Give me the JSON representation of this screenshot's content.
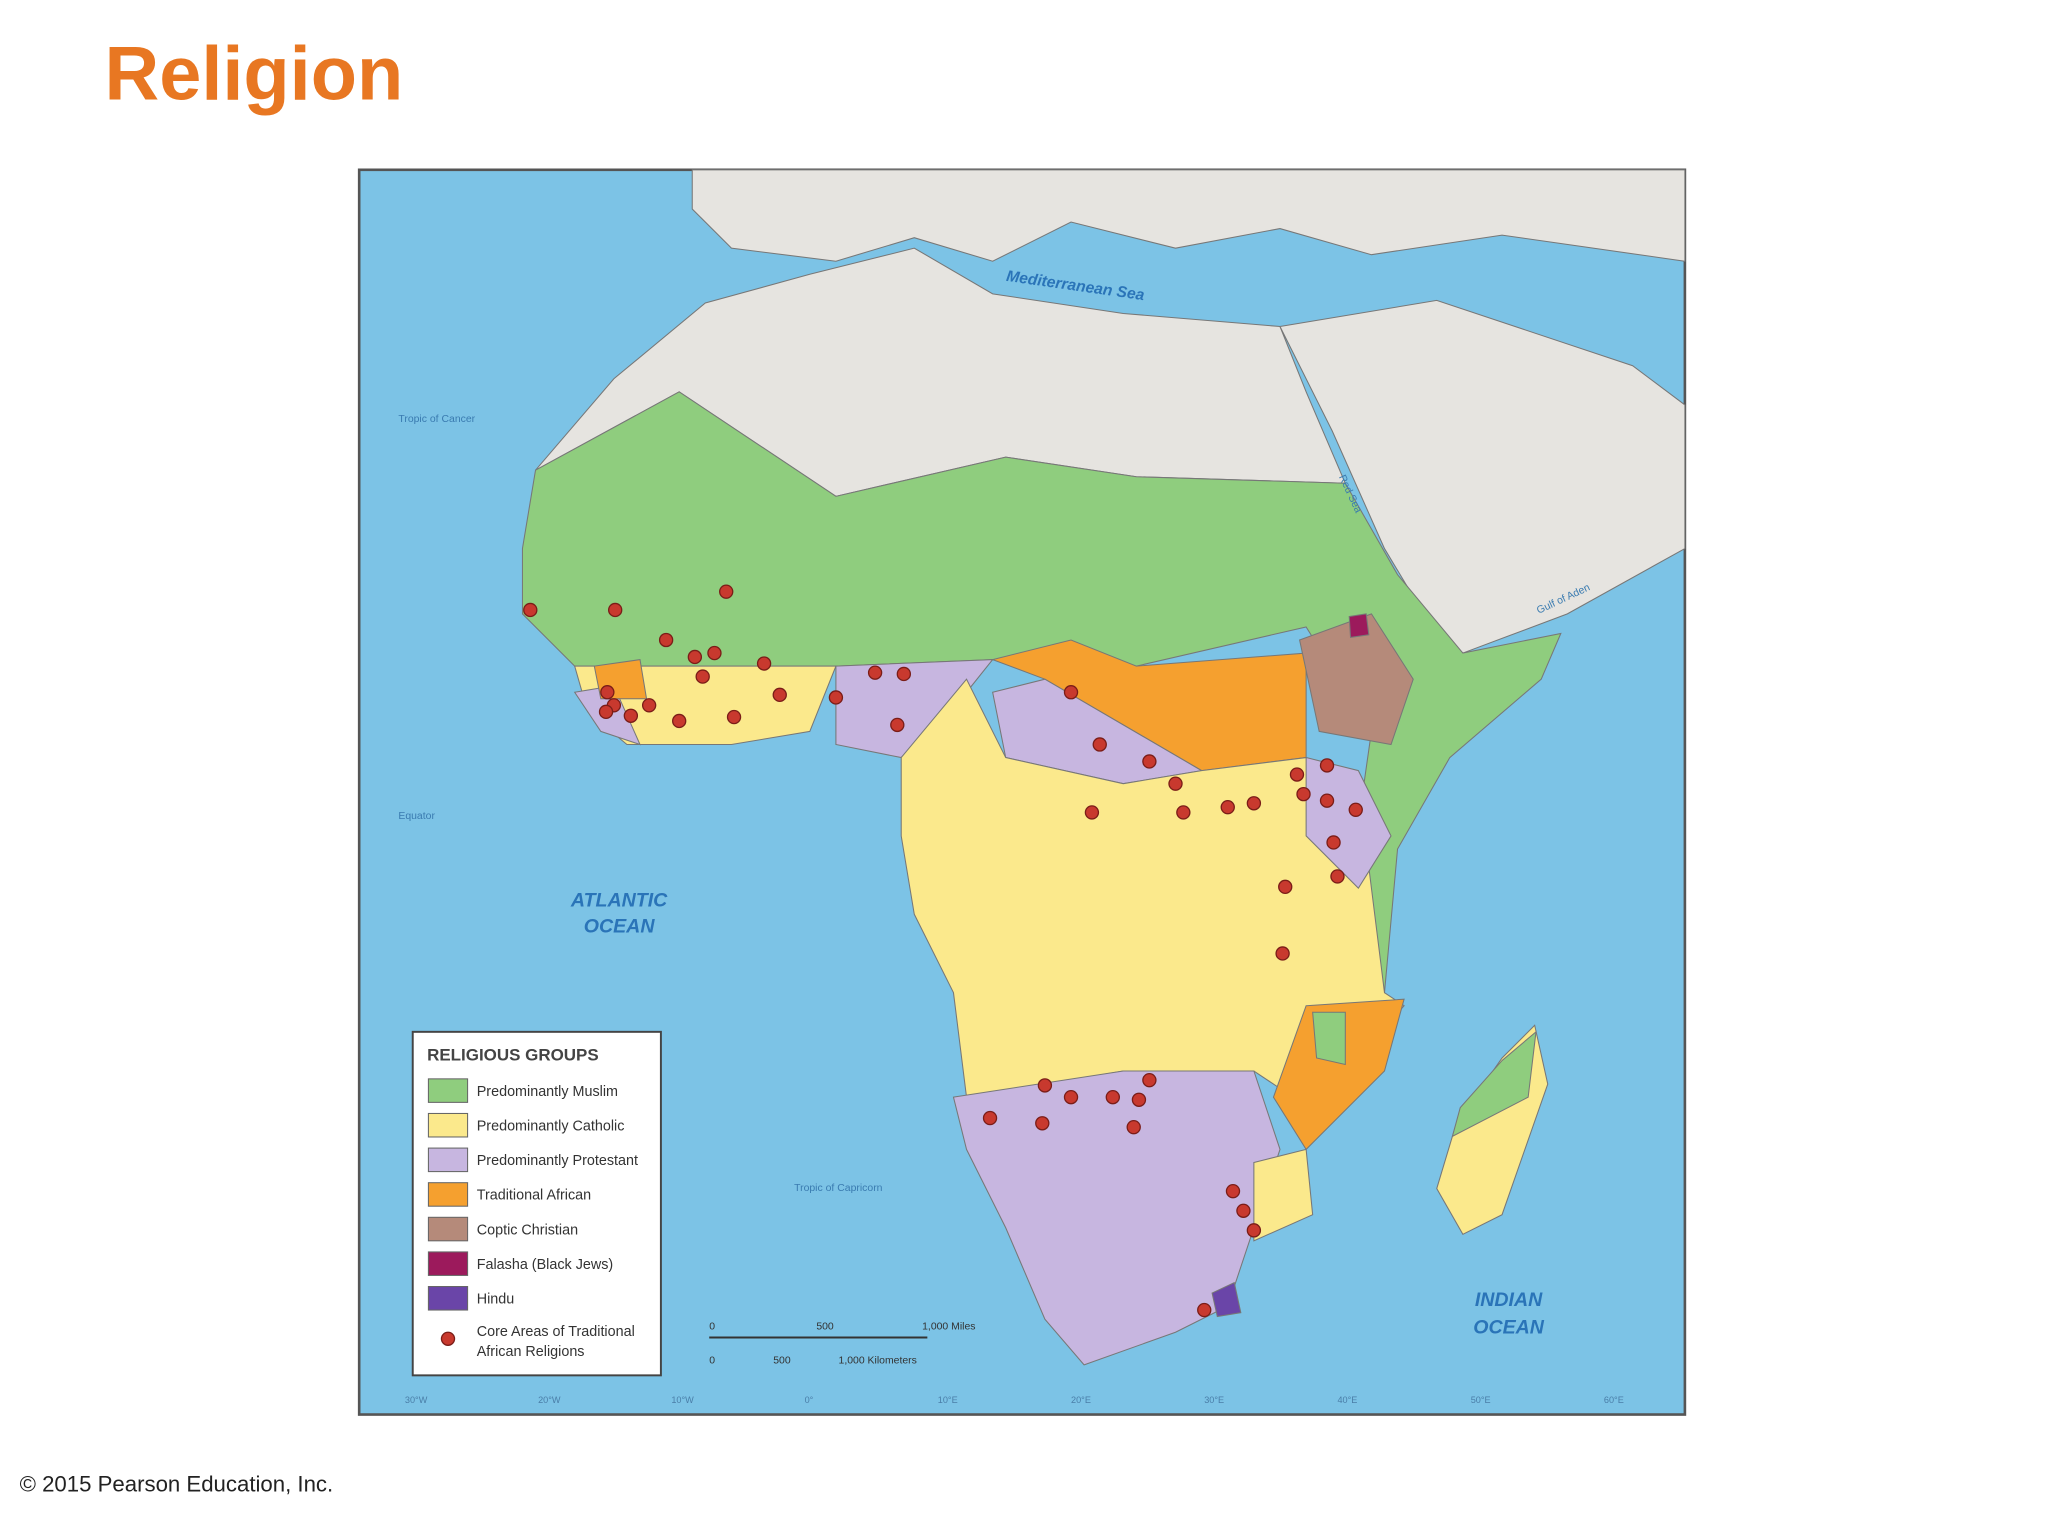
{
  "header": {
    "title": "Religion"
  },
  "map": {
    "labels": {
      "mediterranean": "Mediterranean Sea",
      "red_sea": "Red Sea",
      "gulf_of_aden": "Gulf of Aden",
      "atlantic_1": "ATLANTIC",
      "atlantic_2": "OCEAN",
      "indian_1": "INDIAN",
      "indian_2": "OCEAN",
      "tropic_cancer": "Tropic of Cancer",
      "equator": "Equator",
      "tropic_capricorn": "Tropic of Capricorn"
    },
    "longitudes": [
      "30°W",
      "20°W",
      "10°W",
      "0°",
      "10°E",
      "20°E",
      "30°E",
      "40°E",
      "50°E",
      "60°E"
    ],
    "scale": {
      "miles_0": "0",
      "miles_500": "500",
      "miles_1000": "1,000 Miles",
      "km_0": "0",
      "km_500": "500",
      "km_1000": "1,000 Kilometers"
    },
    "legend": {
      "title": "RELIGIOUS GROUPS",
      "items": [
        {
          "label": "Predominantly Muslim",
          "color": "#8fcd7e"
        },
        {
          "label": "Predominantly Catholic",
          "color": "#fbe98c"
        },
        {
          "label": "Predominantly Protestant",
          "color": "#c7b6e0"
        },
        {
          "label": "Traditional African",
          "color": "#f5a02f"
        },
        {
          "label": "Coptic Christian",
          "color": "#b58a7a"
        },
        {
          "label": "Falasha (Black Jews)",
          "color": "#9c1a5c"
        },
        {
          "label": "Hindu",
          "color": "#6a45a8"
        }
      ],
      "dot": {
        "label": "Core Areas of Traditional African Religions",
        "color": "#c8392e"
      }
    }
  },
  "footer": {
    "copyright": "© 2015 Pearson Education, Inc."
  }
}
